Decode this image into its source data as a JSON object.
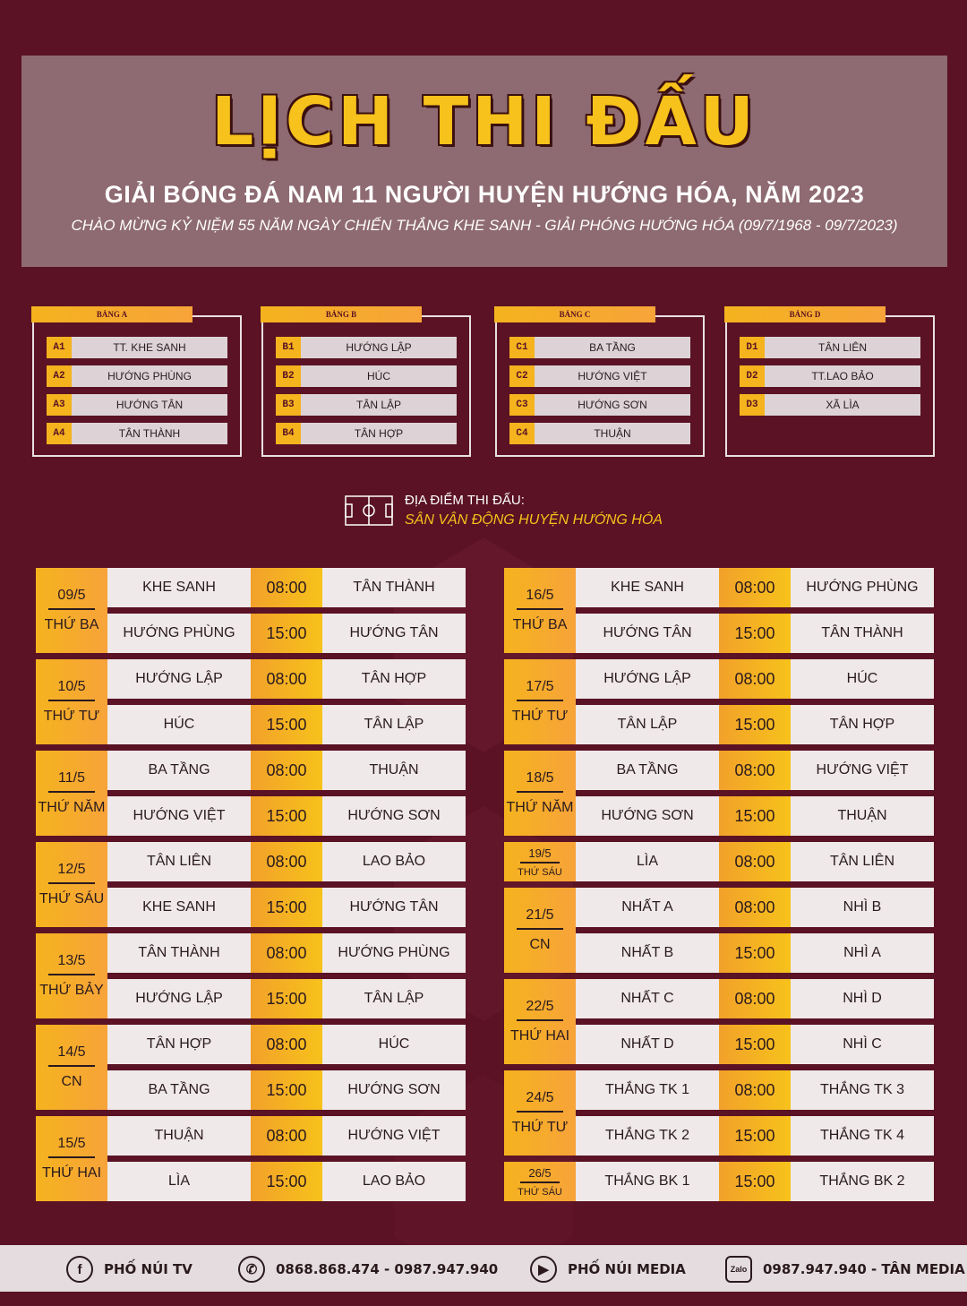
{
  "header": {
    "title": "LỊCH THI ĐẤU",
    "subtitle": "GIẢI BÓNG ĐÁ NAM 11 NGƯỜI HUYỆN HƯỚNG HÓA, NĂM 2023",
    "subtitle2": "CHÀO MỪNG KỶ NIỆM 55 NĂM NGÀY CHIẾN THẮNG KHE SANH - GIẢI PHÓNG HƯỚNG HÓA  (09/7/1968 - 09/7/2023)"
  },
  "groups": [
    {
      "name": "BẢNG A",
      "teams": [
        {
          "code": "A1",
          "name": "TT. KHE SANH"
        },
        {
          "code": "A2",
          "name": "HƯỚNG PHÙNG"
        },
        {
          "code": "A3",
          "name": "HƯỚNG TÂN"
        },
        {
          "code": "A4",
          "name": "TÂN THÀNH"
        }
      ]
    },
    {
      "name": "BẢNG B",
      "teams": [
        {
          "code": "B1",
          "name": "HƯỚNG LẬP"
        },
        {
          "code": "B2",
          "name": "HÚC"
        },
        {
          "code": "B3",
          "name": "TÂN LẬP"
        },
        {
          "code": "B4",
          "name": "TÂN HỢP"
        }
      ]
    },
    {
      "name": "BẢNG C",
      "teams": [
        {
          "code": "C1",
          "name": "BA TẦNG"
        },
        {
          "code": "C2",
          "name": "HƯỚNG VIỆT"
        },
        {
          "code": "C3",
          "name": "HƯỚNG SƠN"
        },
        {
          "code": "C4",
          "name": "THUẬN"
        }
      ]
    },
    {
      "name": "BẢNG D",
      "teams": [
        {
          "code": "D1",
          "name": "TÂN LIÊN"
        },
        {
          "code": "D2",
          "name": "TT.LAO BẢO"
        },
        {
          "code": "D3",
          "name": "XÃ LÌA"
        }
      ]
    }
  ],
  "venue": {
    "label": "ĐỊA ĐIỂM THI ĐẤU:",
    "name": "SÂN VẬN ĐỘNG HUYỆN HƯỚNG HÓA"
  },
  "schedule_left": [
    {
      "date": "09/5",
      "day": "THỨ BA",
      "matches": [
        {
          "home": "KHE SANH",
          "time": "08:00",
          "away": "TÂN THÀNH"
        },
        {
          "home": "HƯỚNG PHÙNG",
          "time": "15:00",
          "away": "HƯỚNG TÂN"
        }
      ]
    },
    {
      "date": "10/5",
      "day": "THỨ TƯ",
      "matches": [
        {
          "home": "HƯỚNG LẬP",
          "time": "08:00",
          "away": "TÂN HỢP"
        },
        {
          "home": "HÚC",
          "time": "15:00",
          "away": "TÂN LẬP"
        }
      ]
    },
    {
      "date": "11/5",
      "day": "THỨ NĂM",
      "matches": [
        {
          "home": "BA TẦNG",
          "time": "08:00",
          "away": "THUẬN"
        },
        {
          "home": "HƯỚNG VIỆT",
          "time": "15:00",
          "away": "HƯỚNG SƠN"
        }
      ]
    },
    {
      "date": "12/5",
      "day": "THỨ SÁU",
      "matches": [
        {
          "home": "TÂN LIÊN",
          "time": "08:00",
          "away": "LAO BẢO"
        },
        {
          "home": "KHE SANH",
          "time": "15:00",
          "away": "HƯỚNG TÂN"
        }
      ]
    },
    {
      "date": "13/5",
      "day": "THỨ BẢY",
      "matches": [
        {
          "home": "TÂN THÀNH",
          "time": "08:00",
          "away": "HƯỚNG PHÙNG"
        },
        {
          "home": "HƯỚNG LẬP",
          "time": "15:00",
          "away": "TÂN LẬP"
        }
      ]
    },
    {
      "date": "14/5",
      "day": "CN",
      "matches": [
        {
          "home": "TÂN HỢP",
          "time": "08:00",
          "away": "HÚC"
        },
        {
          "home": "BA TẦNG",
          "time": "15:00",
          "away": "HƯỚNG SƠN"
        }
      ]
    },
    {
      "date": "15/5",
      "day": "THỨ HAI",
      "matches": [
        {
          "home": "THUẬN",
          "time": "08:00",
          "away": "HƯỚNG VIỆT"
        },
        {
          "home": "LÌA",
          "time": "15:00",
          "away": "LAO BẢO"
        }
      ]
    }
  ],
  "schedule_right": [
    {
      "date": "16/5",
      "day": "THỨ BA",
      "matches": [
        {
          "home": "KHE SANH",
          "time": "08:00",
          "away": "HƯỚNG PHÙNG"
        },
        {
          "home": "HƯỚNG TÂN",
          "time": "15:00",
          "away": "TÂN THÀNH"
        }
      ]
    },
    {
      "date": "17/5",
      "day": "THỨ TƯ",
      "matches": [
        {
          "home": "HƯỚNG LẬP",
          "time": "08:00",
          "away": "HÚC"
        },
        {
          "home": "TÂN LẬP",
          "time": "15:00",
          "away": "TÂN HỢP"
        }
      ]
    },
    {
      "date": "18/5",
      "day": "THỨ NĂM",
      "matches": [
        {
          "home": "BA TẦNG",
          "time": "08:00",
          "away": "HƯỚNG VIỆT"
        },
        {
          "home": "HƯỚNG SƠN",
          "time": "15:00",
          "away": "THUẬN"
        }
      ]
    },
    {
      "date": "19/5",
      "day": "THỨ SÁU",
      "matches": [
        {
          "home": "LÌA",
          "time": "08:00",
          "away": "TÂN LIÊN"
        }
      ]
    },
    {
      "date": "21/5",
      "day": "CN",
      "matches": [
        {
          "home": "NHẤT A",
          "time": "08:00",
          "away": "NHÌ B"
        },
        {
          "home": "NHẤT B",
          "time": "15:00",
          "away": "NHÌ A"
        }
      ]
    },
    {
      "date": "22/5",
      "day": "THỨ HAI",
      "matches": [
        {
          "home": "NHẤT C",
          "time": "08:00",
          "away": "NHÌ D"
        },
        {
          "home": "NHẤT D",
          "time": "15:00",
          "away": "NHÌ C"
        }
      ]
    },
    {
      "date": "24/5",
      "day": "THỨ TƯ",
      "matches": [
        {
          "home": "THẮNG TK 1",
          "time": "08:00",
          "away": "THẮNG TK 3"
        },
        {
          "home": "THẮNG TK 2",
          "time": "15:00",
          "away": "THẮNG TK 4"
        }
      ]
    },
    {
      "date": "26/5",
      "day": "THỨ SÁU",
      "matches": [
        {
          "home": "THẮNG BK 1",
          "time": "15:00",
          "away": "THẮNG BK 2"
        }
      ]
    }
  ],
  "footer": [
    {
      "icon": "facebook-icon",
      "glyph": "f",
      "text": "PHỐ NÚI TV"
    },
    {
      "icon": "phone-icon",
      "glyph": "✆",
      "text": "0868.868.474 - 0987.947.940"
    },
    {
      "icon": "youtube-icon",
      "glyph": "▶",
      "text": "PHỐ NÚI MEDIA"
    },
    {
      "icon": "zalo-icon",
      "glyph": "Zalo",
      "text": "0987.947.940 - TÂN MEDIA"
    }
  ]
}
